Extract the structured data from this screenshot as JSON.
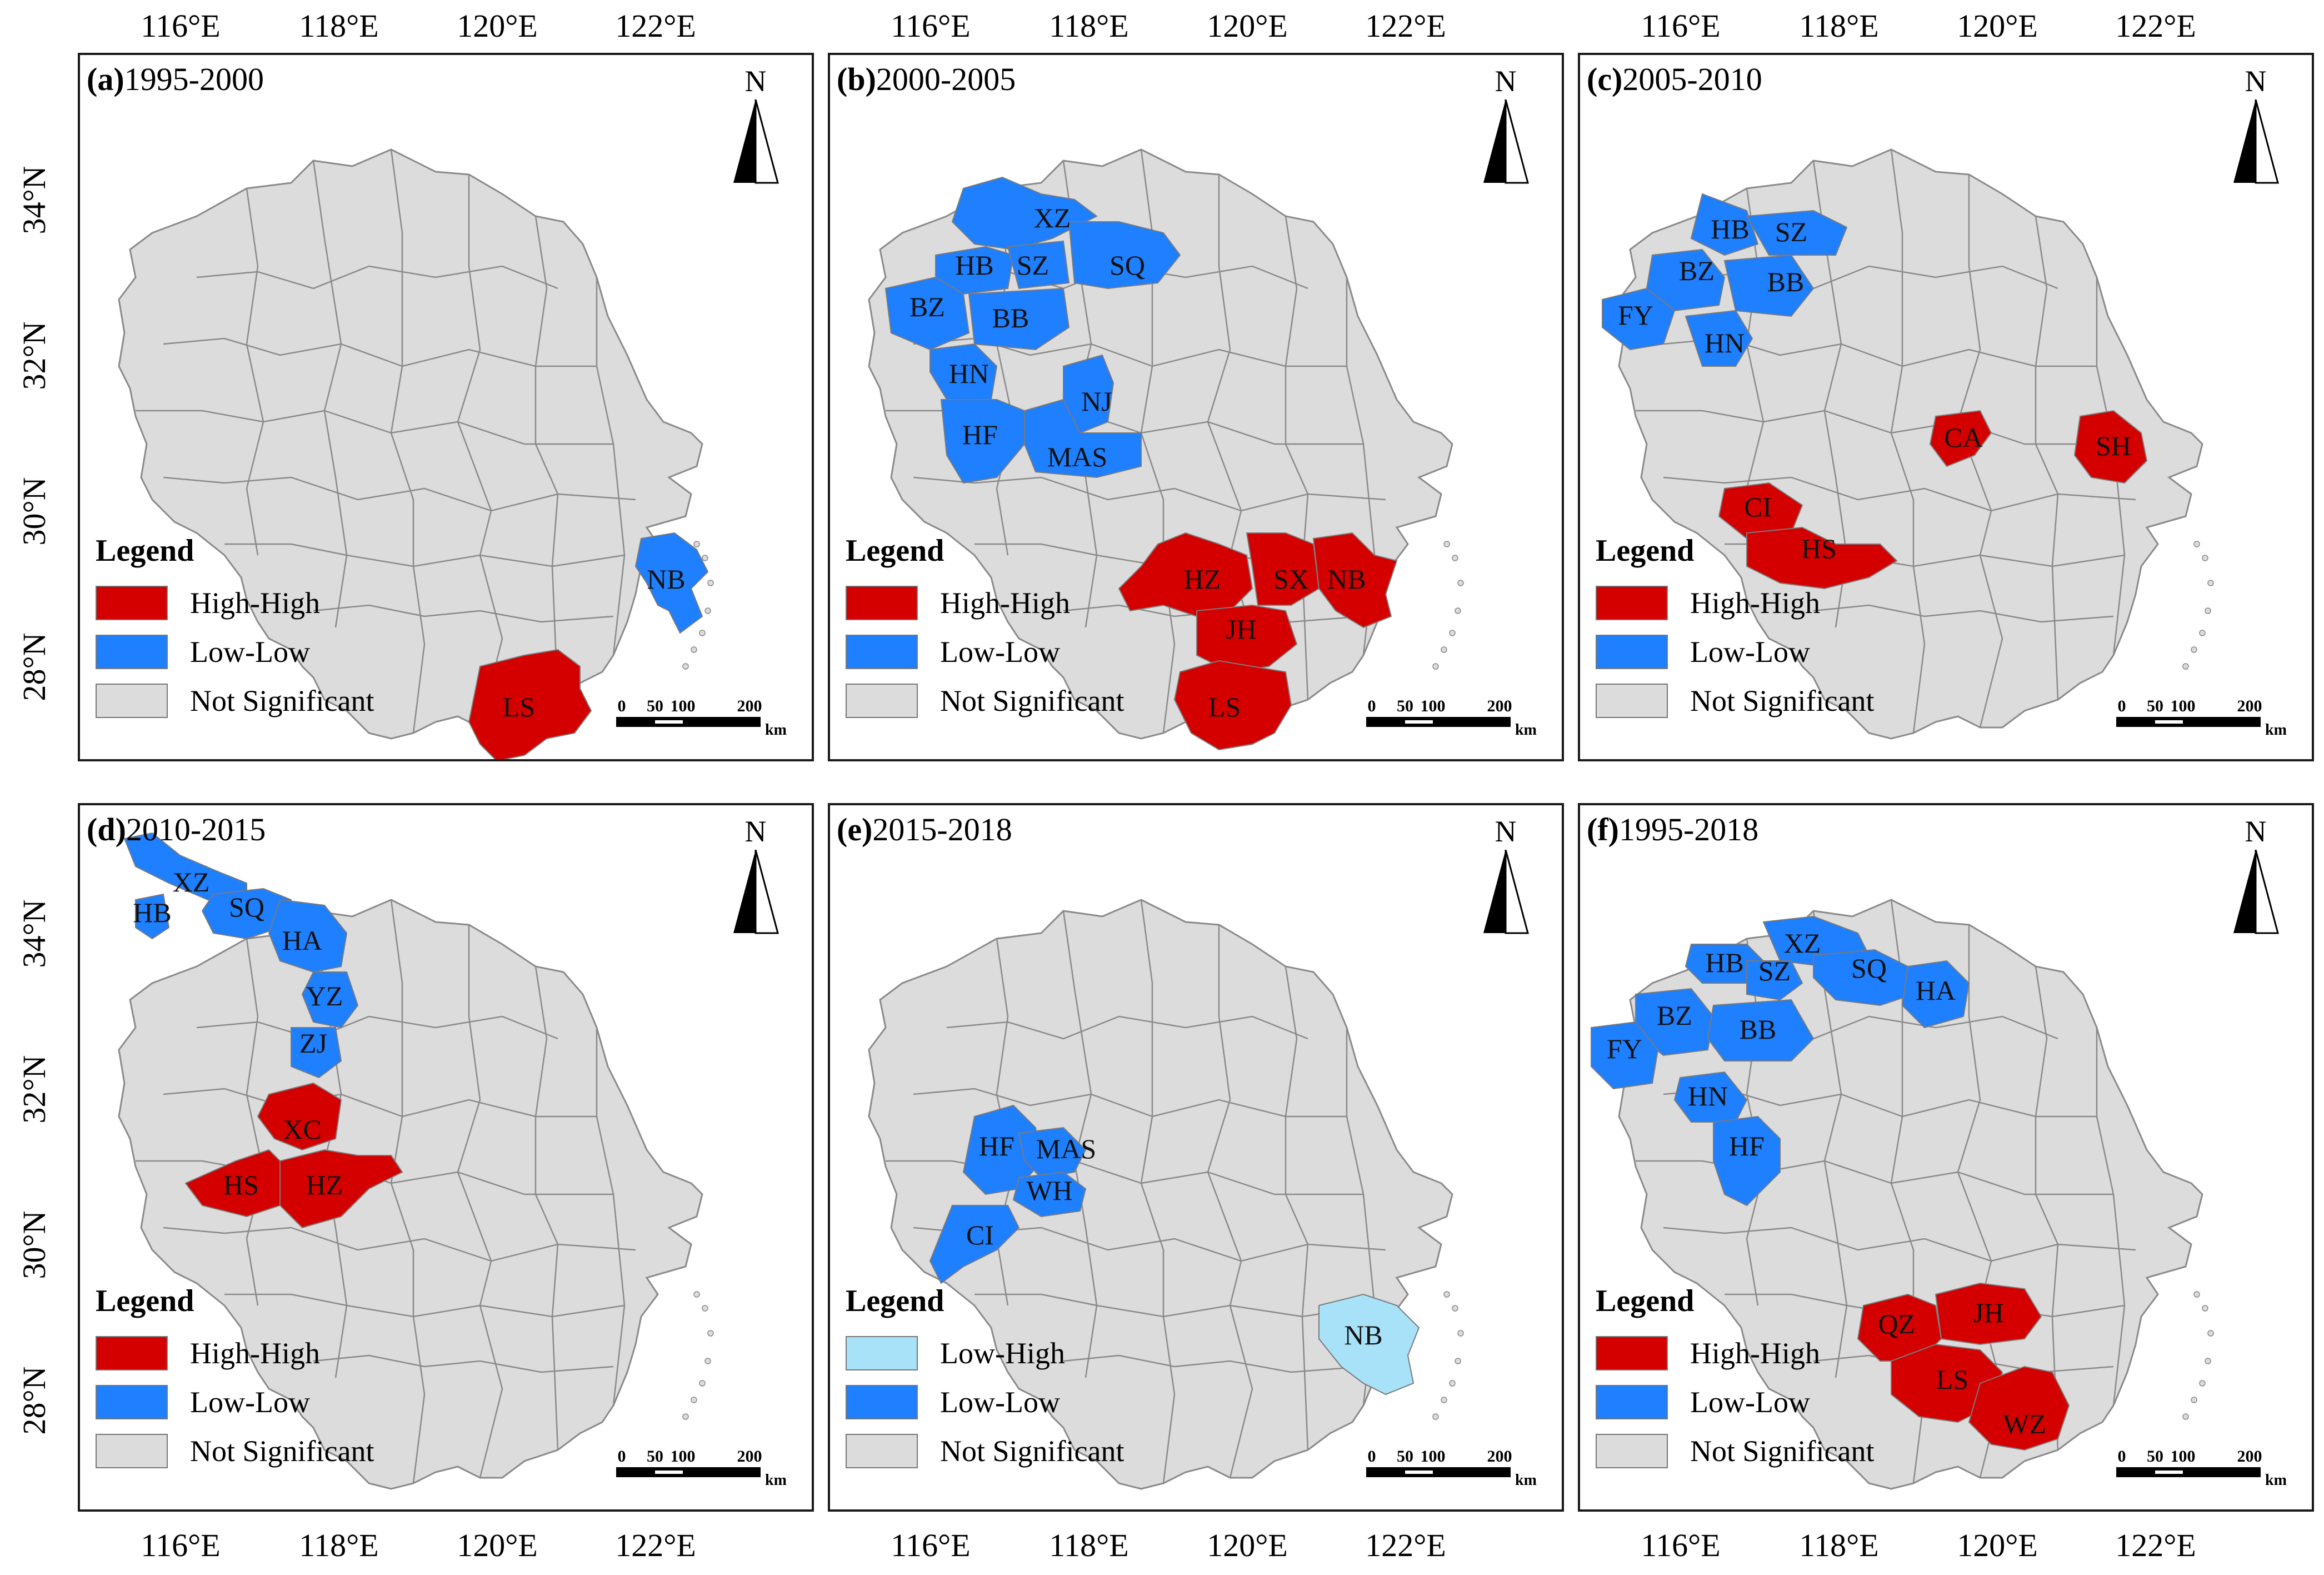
{
  "colors": {
    "high_high": "#d40000",
    "low_low": "#1e7fff",
    "low_high": "#a8e2f8",
    "not_significant": "#dcdcdc",
    "boundary": "#8a8a8a"
  },
  "axes": {
    "longitude_labels": [
      "116°E",
      "118°E",
      "120°E",
      "122°E"
    ],
    "latitude_labels": [
      "34°N",
      "32°N",
      "30°N",
      "28°N"
    ]
  },
  "north_arrow": {
    "label": "N"
  },
  "scale_bar": {
    "ticks": [
      "0",
      "50",
      "100",
      "200"
    ],
    "unit": "km"
  },
  "legend": {
    "title": "Legend"
  },
  "panels": [
    {
      "letter": "(a)",
      "period": "1995-2000",
      "legend_items": [
        {
          "label": "High-High",
          "class": "high_high"
        },
        {
          "label": "Low-Low",
          "class": "low_low"
        },
        {
          "label": "Not Significant",
          "class": "not_significant"
        }
      ],
      "regions": [
        {
          "name": "NB",
          "class": "low_low"
        },
        {
          "name": "LS",
          "class": "high_high"
        }
      ]
    },
    {
      "letter": "(b)",
      "period": "2000-2005",
      "legend_items": [
        {
          "label": "High-High",
          "class": "high_high"
        },
        {
          "label": "Low-Low",
          "class": "low_low"
        },
        {
          "label": "Not Significant",
          "class": "not_significant"
        }
      ],
      "regions": [
        {
          "name": "XZ",
          "class": "low_low"
        },
        {
          "name": "HB",
          "class": "low_low"
        },
        {
          "name": "SZ",
          "class": "low_low"
        },
        {
          "name": "SQ",
          "class": "low_low"
        },
        {
          "name": "BZ",
          "class": "low_low"
        },
        {
          "name": "BB",
          "class": "low_low"
        },
        {
          "name": "HN",
          "class": "low_low"
        },
        {
          "name": "NJ",
          "class": "low_low"
        },
        {
          "name": "HF",
          "class": "low_low"
        },
        {
          "name": "MAS",
          "class": "low_low"
        },
        {
          "name": "HZ",
          "class": "high_high"
        },
        {
          "name": "SX",
          "class": "high_high"
        },
        {
          "name": "NB",
          "class": "high_high"
        },
        {
          "name": "JH",
          "class": "high_high"
        },
        {
          "name": "LS",
          "class": "high_high"
        }
      ]
    },
    {
      "letter": "(c)",
      "period": "2005-2010",
      "legend_items": [
        {
          "label": "High-High",
          "class": "high_high"
        },
        {
          "label": "Low-Low",
          "class": "low_low"
        },
        {
          "label": "Not Significant",
          "class": "not_significant"
        }
      ],
      "regions": [
        {
          "name": "HB",
          "class": "low_low"
        },
        {
          "name": "SZ",
          "class": "low_low"
        },
        {
          "name": "BZ",
          "class": "low_low"
        },
        {
          "name": "BB",
          "class": "low_low"
        },
        {
          "name": "FY",
          "class": "low_low"
        },
        {
          "name": "HN",
          "class": "low_low"
        },
        {
          "name": "CA",
          "class": "high_high"
        },
        {
          "name": "SH",
          "class": "high_high"
        },
        {
          "name": "CI",
          "class": "high_high"
        },
        {
          "name": "HS",
          "class": "high_high"
        }
      ]
    },
    {
      "letter": "(d)",
      "period": "2010-2015",
      "legend_items": [
        {
          "label": "High-High",
          "class": "high_high"
        },
        {
          "label": "Low-Low",
          "class": "low_low"
        },
        {
          "label": "Not Significant",
          "class": "not_significant"
        }
      ],
      "regions": [
        {
          "name": "XZ",
          "class": "low_low"
        },
        {
          "name": "HB",
          "class": "low_low"
        },
        {
          "name": "SQ",
          "class": "low_low"
        },
        {
          "name": "HA",
          "class": "low_low"
        },
        {
          "name": "YZ",
          "class": "low_low"
        },
        {
          "name": "ZJ",
          "class": "low_low"
        },
        {
          "name": "XC",
          "class": "high_high"
        },
        {
          "name": "HS",
          "class": "high_high"
        },
        {
          "name": "HZ",
          "class": "high_high"
        }
      ]
    },
    {
      "letter": "(e)",
      "period": "2015-2018",
      "legend_items": [
        {
          "label": "Low-High",
          "class": "low_high"
        },
        {
          "label": "Low-Low",
          "class": "low_low"
        },
        {
          "label": "Not Significant",
          "class": "not_significant"
        }
      ],
      "regions": [
        {
          "name": "HF",
          "class": "low_low"
        },
        {
          "name": "MAS",
          "class": "low_low"
        },
        {
          "name": "WH",
          "class": "low_low"
        },
        {
          "name": "CI",
          "class": "low_low"
        },
        {
          "name": "NB",
          "class": "low_high"
        }
      ]
    },
    {
      "letter": "(f)",
      "period": "1995-2018",
      "legend_items": [
        {
          "label": "High-High",
          "class": "high_high"
        },
        {
          "label": "Low-Low",
          "class": "low_low"
        },
        {
          "label": "Not Significant",
          "class": "not_significant"
        }
      ],
      "regions": [
        {
          "name": "XZ",
          "class": "low_low"
        },
        {
          "name": "HB",
          "class": "low_low"
        },
        {
          "name": "SZ",
          "class": "low_low"
        },
        {
          "name": "SQ",
          "class": "low_low"
        },
        {
          "name": "BZ",
          "class": "low_low"
        },
        {
          "name": "HA",
          "class": "low_low"
        },
        {
          "name": "FY",
          "class": "low_low"
        },
        {
          "name": "BB",
          "class": "low_low"
        },
        {
          "name": "HN",
          "class": "low_low"
        },
        {
          "name": "HF",
          "class": "low_low"
        },
        {
          "name": "QZ",
          "class": "high_high"
        },
        {
          "name": "JH",
          "class": "high_high"
        },
        {
          "name": "LS",
          "class": "high_high"
        },
        {
          "name": "WZ",
          "class": "high_high"
        }
      ]
    }
  ]
}
